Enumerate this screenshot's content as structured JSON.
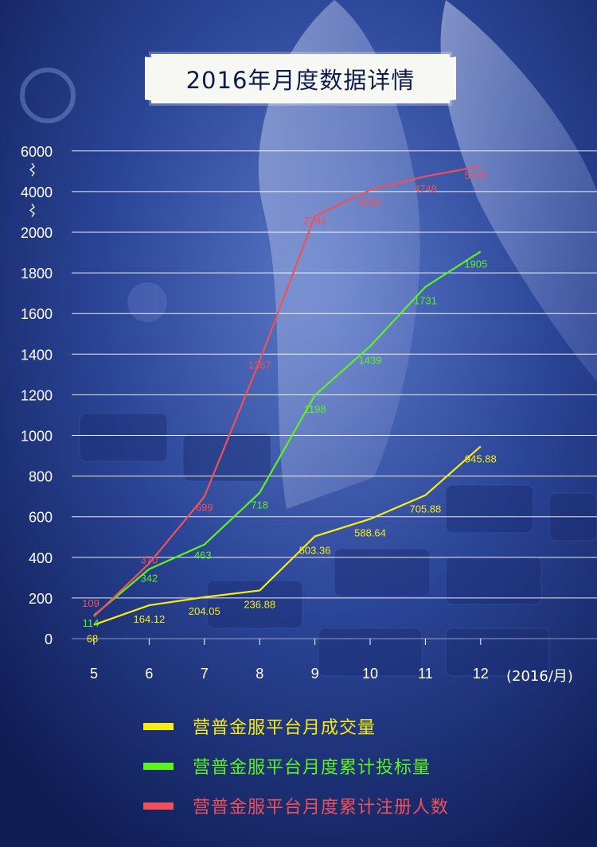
{
  "title": "2016年月度数据详情",
  "x_unit": "(2016/月)",
  "colors": {
    "yellow": "#f5ec18",
    "green": "#5df221",
    "red": "#f0505a",
    "grid": "#ffffff",
    "axis_text": "#ffffff"
  },
  "legend": [
    {
      "label": "营普金服平台月成交量",
      "color": "#f5ec18"
    },
    {
      "label": "营普金服平台月度累计投标量",
      "color": "#5df221"
    },
    {
      "label": "营普金服平台月度累计注册人数",
      "color": "#f0505a"
    }
  ],
  "chart_data": {
    "type": "line",
    "title": "2016年月度数据详情",
    "xlabel": "(2016/月)",
    "ylabel": "",
    "categories": [
      "5",
      "6",
      "7",
      "8",
      "9",
      "10",
      "11",
      "12"
    ],
    "y_ticks": [
      "6000",
      "4000",
      "2000",
      "1800",
      "1600",
      "1400",
      "1200",
      "1000",
      "800",
      "600",
      "400",
      "200",
      "0"
    ],
    "y_axis_break": "broken scale above 2000 (2000 → 4000 → 6000)",
    "grid": true,
    "legend_position": "bottom",
    "series": [
      {
        "name": "营普金服平台月成交量",
        "color": "#f5ec18",
        "values": [
          68,
          164.12,
          204.05,
          236.88,
          503.36,
          588.64,
          705.88,
          945.88
        ],
        "labels": [
          "68",
          "164.12",
          "204.05",
          "236.88",
          "503.36",
          "588.64",
          "705.88",
          "945.88"
        ]
      },
      {
        "name": "营普金服平台月度累计投标量",
        "color": "#5df221",
        "values": [
          114,
          342,
          463,
          718,
          1198,
          1439,
          1731,
          1905
        ],
        "labels": [
          "114",
          "342",
          "463",
          "718",
          "1198",
          "1439",
          "1731",
          "1905"
        ]
      },
      {
        "name": "营普金服平台月度累计注册人数",
        "color": "#f0505a",
        "values": [
          109,
          370,
          699,
          1367,
          2789,
          4080,
          4748,
          5245
        ],
        "labels": [
          "109",
          "370",
          "699",
          "1367",
          "2789",
          "4080",
          "4748",
          "5245"
        ]
      }
    ]
  }
}
